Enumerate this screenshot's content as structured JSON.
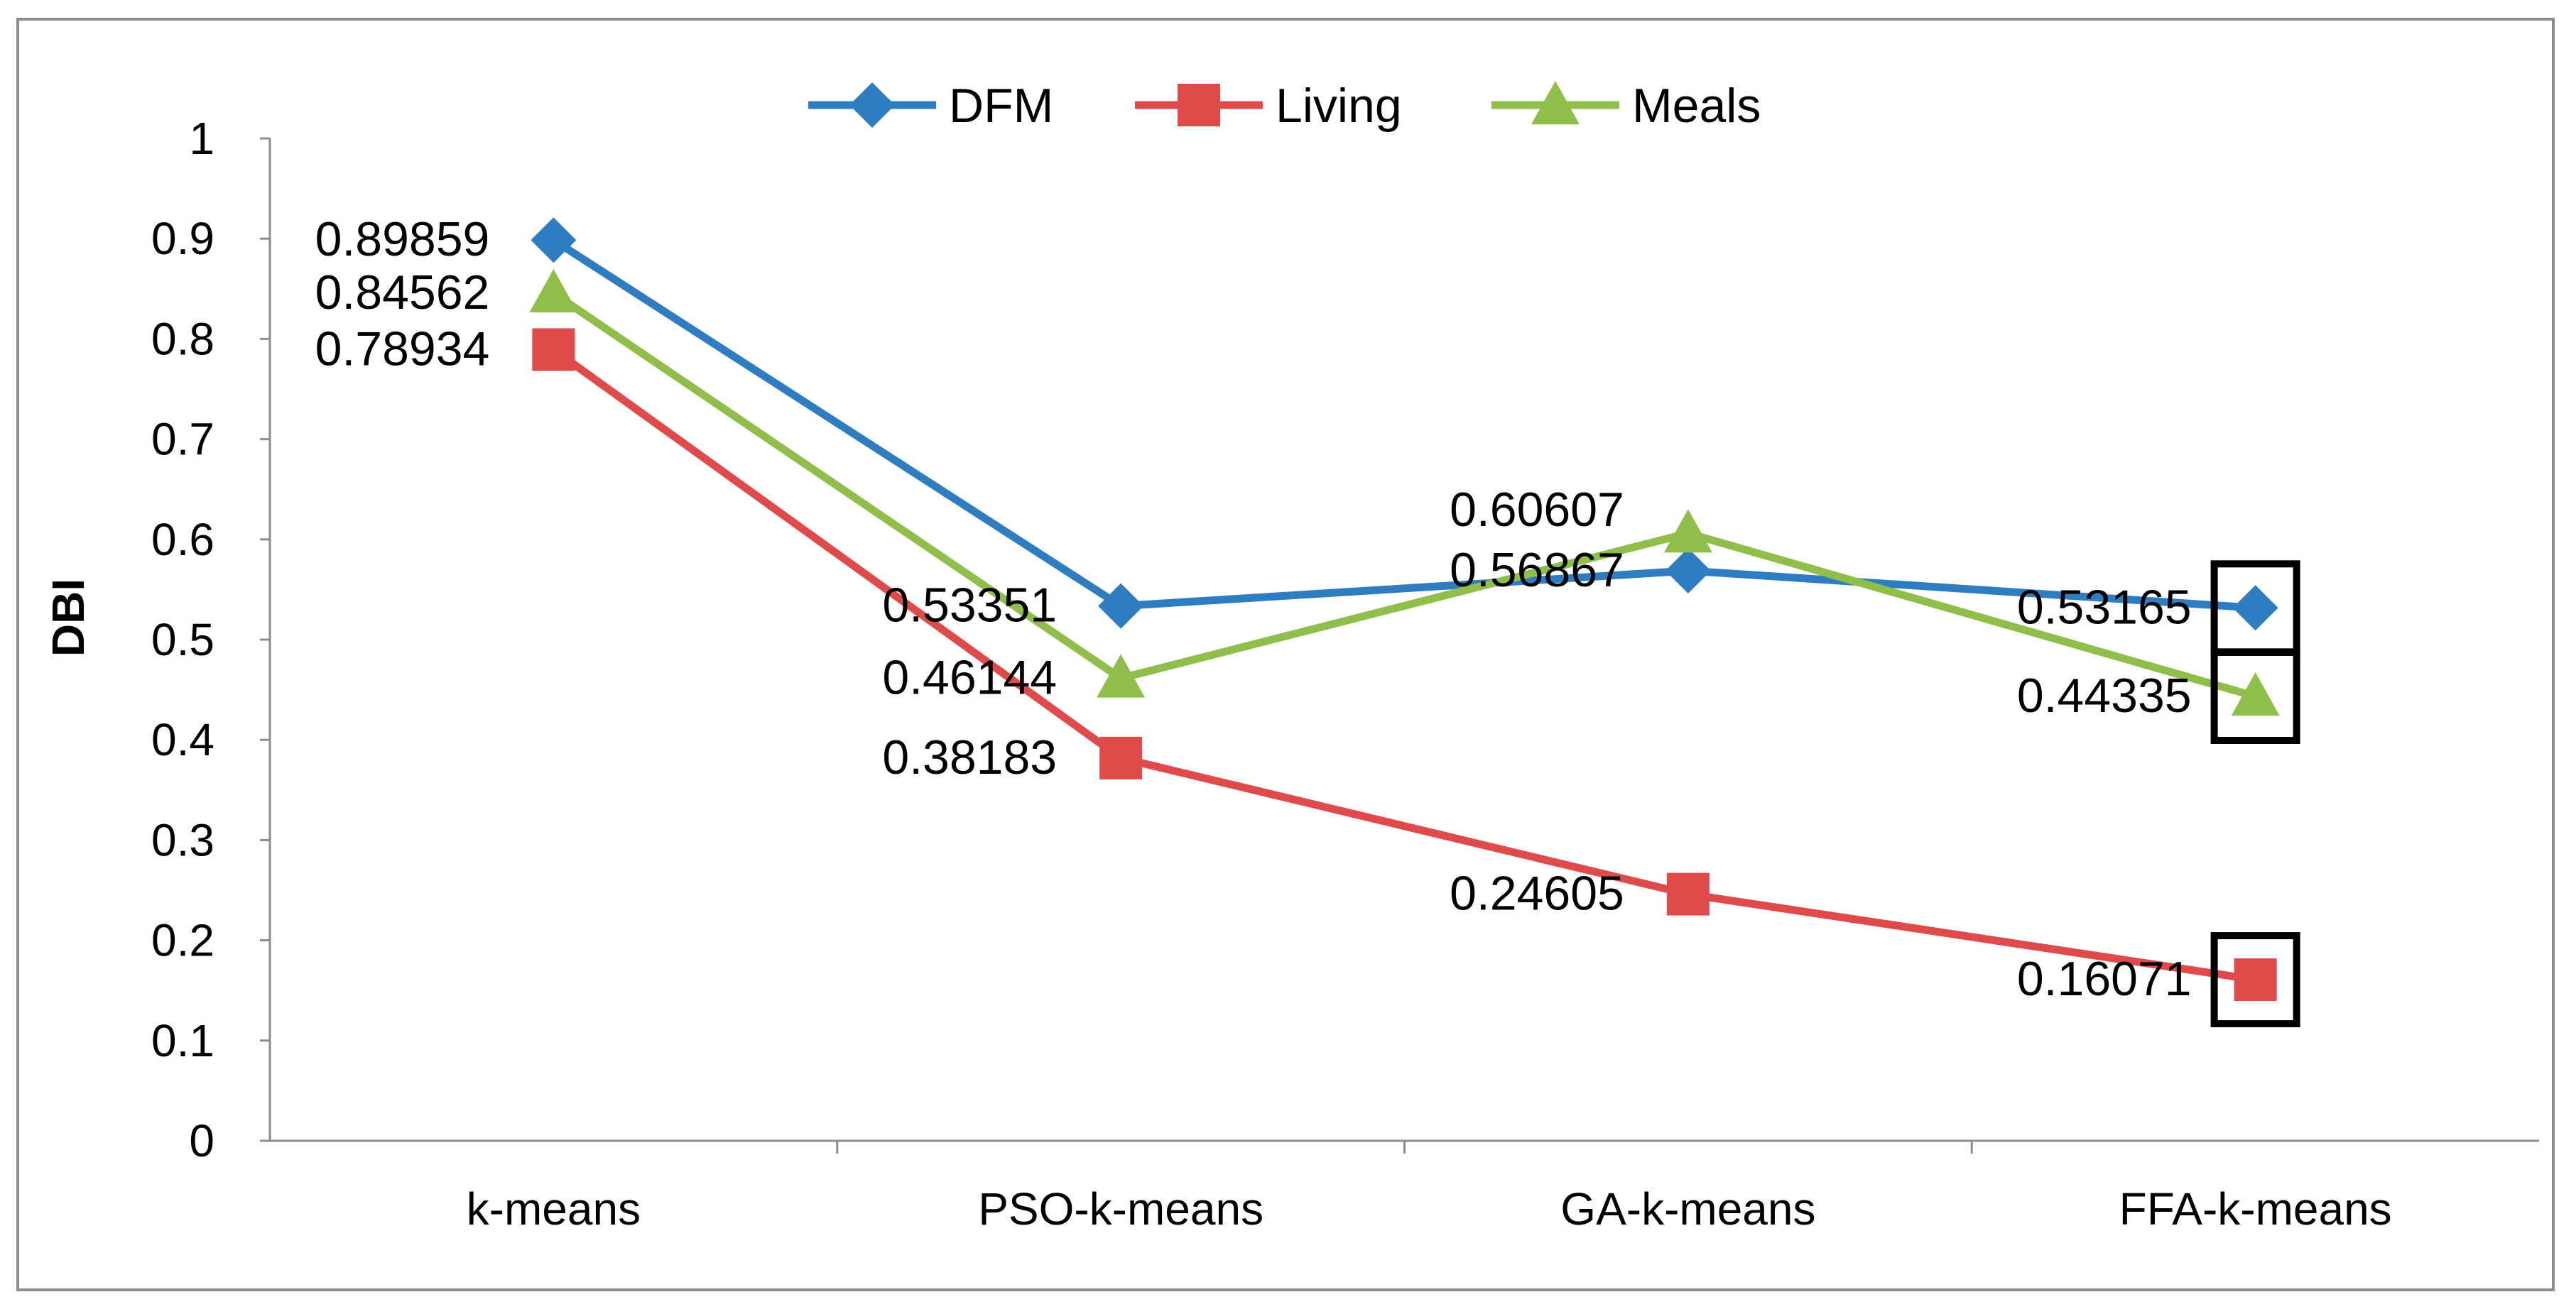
{
  "chart_data": {
    "type": "line",
    "title": "",
    "xlabel": "",
    "ylabel": "DBI",
    "ylim": [
      0,
      1
    ],
    "yticks": [
      "0",
      "0.1",
      "0.2",
      "0.3",
      "0.4",
      "0.5",
      "0.6",
      "0.7",
      "0.8",
      "0.9",
      "1"
    ],
    "categories": [
      "k-means",
      "PSO-k-means",
      "GA-k-means",
      "FFA-k-means"
    ],
    "grid": false,
    "legend": "top",
    "series": [
      {
        "name": "DFM",
        "color": "#2e7dc0",
        "marker": "diamond",
        "values": [
          0.89859,
          0.53351,
          0.56867,
          0.53165
        ],
        "labels": [
          "0.89859",
          "0.53351",
          "0.56867",
          "0.53165"
        ]
      },
      {
        "name": "Living",
        "color": "#df4b4b",
        "marker": "square",
        "values": [
          0.78934,
          0.38183,
          0.24605,
          0.16071
        ],
        "labels": [
          "0.78934",
          "0.38183",
          "0.24605",
          "0.16071"
        ]
      },
      {
        "name": "Meals",
        "color": "#8fbf4a",
        "marker": "triangle",
        "values": [
          0.84562,
          0.46144,
          0.60607,
          0.44335
        ],
        "labels": [
          "0.84562",
          "0.46144",
          "0.60607",
          "0.44335"
        ]
      }
    ],
    "highlighted_points": [
      {
        "series": "DFM",
        "category": "FFA-k-means"
      },
      {
        "series": "Meals",
        "category": "FFA-k-means"
      },
      {
        "series": "Living",
        "category": "FFA-k-means"
      }
    ]
  }
}
